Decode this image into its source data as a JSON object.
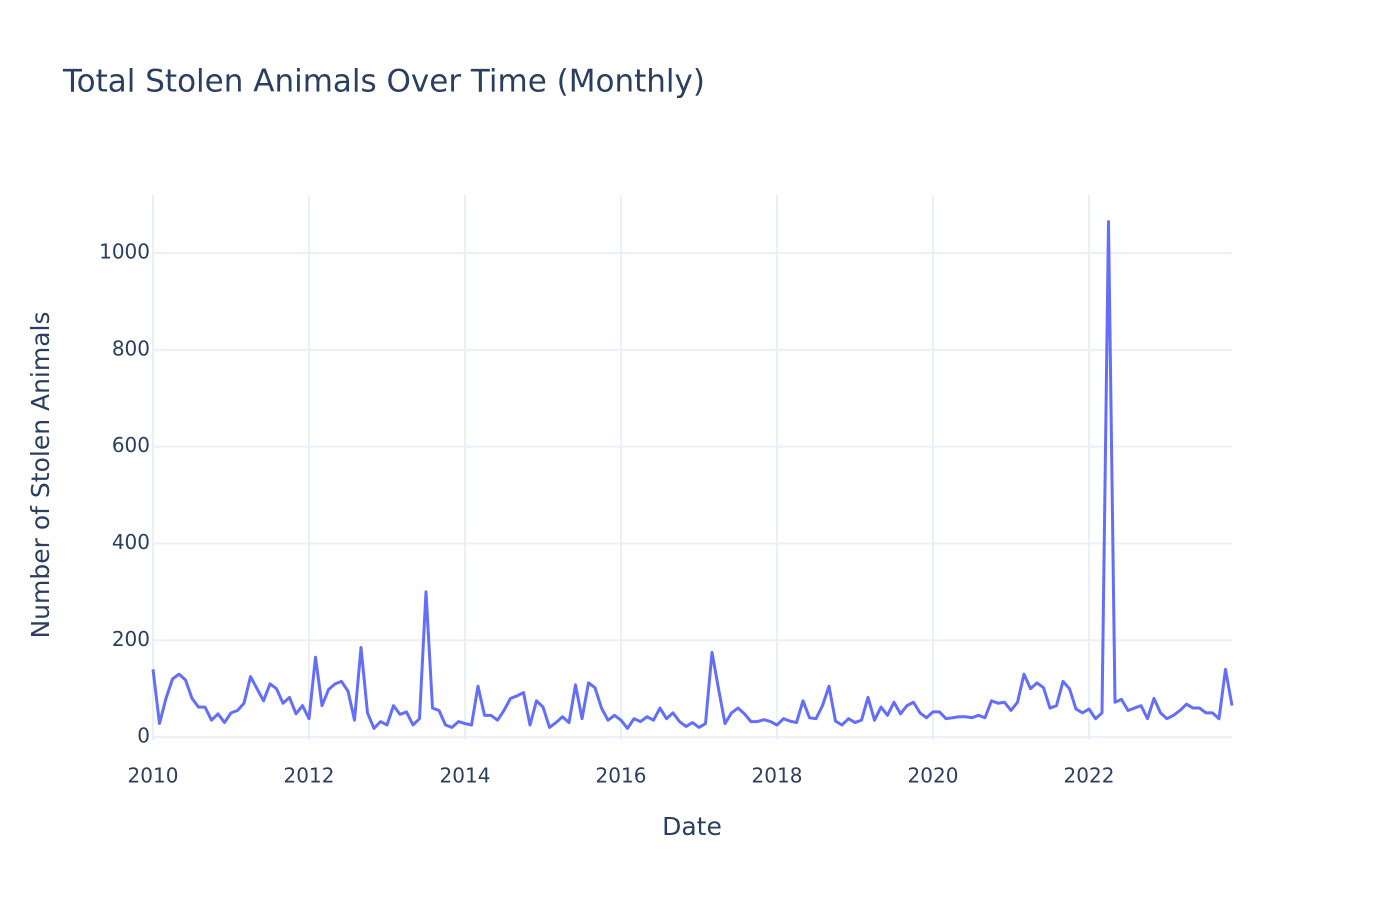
{
  "chart_data": {
    "type": "line",
    "title": "Total Stolen Animals Over Time (Monthly)",
    "x_label": "Date",
    "y_label": "Number of Stolen Animals",
    "x": [
      "2010-01",
      "2010-02",
      "2010-03",
      "2010-04",
      "2010-05",
      "2010-06",
      "2010-07",
      "2010-08",
      "2010-09",
      "2010-10",
      "2010-11",
      "2010-12",
      "2011-01",
      "2011-02",
      "2011-03",
      "2011-04",
      "2011-05",
      "2011-06",
      "2011-07",
      "2011-08",
      "2011-09",
      "2011-10",
      "2011-11",
      "2011-12",
      "2012-01",
      "2012-02",
      "2012-03",
      "2012-04",
      "2012-05",
      "2012-06",
      "2012-07",
      "2012-08",
      "2012-09",
      "2012-10",
      "2012-11",
      "2012-12",
      "2013-01",
      "2013-02",
      "2013-03",
      "2013-04",
      "2013-05",
      "2013-06",
      "2013-07",
      "2013-08",
      "2013-09",
      "2013-10",
      "2013-11",
      "2013-12",
      "2014-01",
      "2014-02",
      "2014-03",
      "2014-04",
      "2014-05",
      "2014-06",
      "2014-07",
      "2014-08",
      "2014-09",
      "2014-10",
      "2014-11",
      "2014-12",
      "2015-01",
      "2015-02",
      "2015-03",
      "2015-04",
      "2015-05",
      "2015-06",
      "2015-07",
      "2015-08",
      "2015-09",
      "2015-10",
      "2015-11",
      "2015-12",
      "2016-01",
      "2016-02",
      "2016-03",
      "2016-04",
      "2016-05",
      "2016-06",
      "2016-07",
      "2016-08",
      "2016-09",
      "2016-10",
      "2016-11",
      "2016-12",
      "2017-01",
      "2017-02",
      "2017-03",
      "2017-04",
      "2017-05",
      "2017-06",
      "2017-07",
      "2017-08",
      "2017-09",
      "2017-10",
      "2017-11",
      "2017-12",
      "2018-01",
      "2018-02",
      "2018-03",
      "2018-04",
      "2018-05",
      "2018-06",
      "2018-07",
      "2018-08",
      "2018-09",
      "2018-10",
      "2018-11",
      "2018-12",
      "2019-01",
      "2019-02",
      "2019-03",
      "2019-04",
      "2019-05",
      "2019-06",
      "2019-07",
      "2019-08",
      "2019-09",
      "2019-10",
      "2019-11",
      "2019-12",
      "2020-01",
      "2020-02",
      "2020-03",
      "2020-04",
      "2020-05",
      "2020-06",
      "2020-07",
      "2020-08",
      "2020-09",
      "2020-10",
      "2020-11",
      "2020-12",
      "2021-01",
      "2021-02",
      "2021-03",
      "2021-04",
      "2021-05",
      "2021-06",
      "2021-07",
      "2021-08",
      "2021-09",
      "2021-10",
      "2021-11",
      "2021-12",
      "2022-01",
      "2022-02",
      "2022-03",
      "2022-04",
      "2022-05",
      "2022-06",
      "2022-07",
      "2022-08",
      "2022-09",
      "2022-10",
      "2022-11",
      "2022-12",
      "2023-01",
      "2023-02",
      "2023-03",
      "2023-04",
      "2023-05",
      "2023-06",
      "2023-07",
      "2023-08",
      "2023-09",
      "2023-10",
      "2023-11"
    ],
    "series": [
      {
        "name": "Total Stolen Animals",
        "color": "#636efa",
        "values": [
          140,
          28,
          80,
          120,
          130,
          118,
          80,
          62,
          62,
          35,
          48,
          30,
          50,
          55,
          70,
          125,
          100,
          75,
          110,
          100,
          70,
          82,
          48,
          65,
          38,
          165,
          65,
          98,
          110,
          115,
          95,
          35,
          185,
          50,
          18,
          32,
          25,
          65,
          47,
          52,
          25,
          38,
          300,
          60,
          55,
          25,
          20,
          32,
          28,
          25,
          105,
          45,
          45,
          35,
          55,
          80,
          85,
          92,
          25,
          75,
          62,
          20,
          30,
          42,
          30,
          108,
          38,
          112,
          102,
          60,
          35,
          45,
          35,
          18,
          38,
          32,
          42,
          35,
          60,
          38,
          50,
          32,
          22,
          30,
          20,
          28,
          175,
          100,
          28,
          50,
          60,
          48,
          32,
          32,
          36,
          32,
          25,
          38,
          33,
          30,
          75,
          40,
          38,
          65,
          105,
          33,
          25,
          38,
          30,
          35,
          82,
          35,
          62,
          45,
          72,
          48,
          65,
          72,
          50,
          40,
          52,
          52,
          38,
          40,
          42,
          42,
          40,
          45,
          40,
          75,
          70,
          72,
          55,
          72,
          130,
          100,
          112,
          102,
          60,
          65,
          115,
          100,
          58,
          50,
          58,
          38,
          50,
          1065,
          72,
          78,
          55,
          60,
          65,
          38,
          80,
          50,
          38,
          45,
          55,
          68,
          60,
          60,
          50,
          50,
          38,
          140,
          65
        ]
      }
    ],
    "xlim": [
      "2010-01",
      "2023-11"
    ],
    "xticks": [
      2010,
      2012,
      2014,
      2016,
      2018,
      2020,
      2022
    ],
    "ylim": [
      -6,
      1120
    ],
    "yticks": [
      0,
      200,
      400,
      600,
      800,
      1000
    ],
    "grid": true
  }
}
